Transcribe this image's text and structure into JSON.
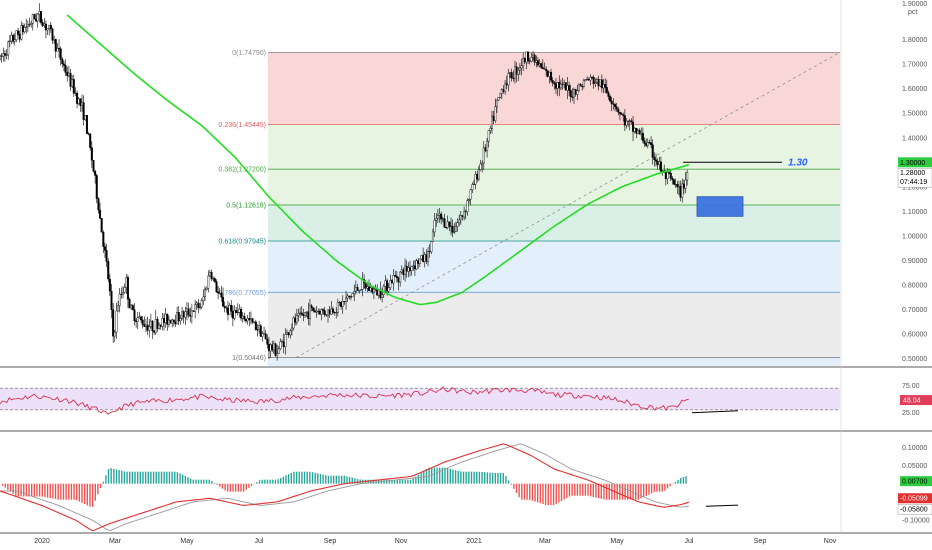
{
  "colors": {
    "up": "#ffffff",
    "down": "#000000",
    "wick": "#000000",
    "ma": "#22dd22",
    "rsi": "#d9324f",
    "macd": "#e03030",
    "signal": "#999999",
    "hist_pos": "#26a69a",
    "hist_neg": "#ef5350"
  },
  "price_axis": {
    "top_label": "1.90000",
    "unit": "pct",
    "ticks": [
      "1.80000",
      "1.70000",
      "1.60000",
      "1.50000",
      "1.40000",
      "1.20000",
      "1.10000",
      "1.00000",
      "0.90000",
      "0.80000",
      "0.70000",
      "0.60000",
      "0.50000"
    ]
  },
  "badges": {
    "current_price": "1.30000",
    "last_price": "1.28000",
    "countdown": "07:44:19",
    "rsi_value": "48.04",
    "macd_hist": "0.00700",
    "macd_line": "-0.05099",
    "signal_line": "-0.05800"
  },
  "rsi_axis": {
    "ticks": [
      "75.00",
      "25.00"
    ]
  },
  "macd_axis": {
    "ticks": [
      "0.10000",
      "0.05000",
      "-0.10000"
    ]
  },
  "time_axis": [
    "2020",
    "Mar",
    "May",
    "Jul",
    "Sep",
    "Nov",
    "2021",
    "Mar",
    "May",
    "Jul",
    "Sep",
    "Nov"
  ],
  "fib_levels": [
    {
      "label": "0(1.74790)",
      "value": 1.7479,
      "color": "#888888",
      "fill": "#f7c9c9"
    },
    {
      "label": "0.236(1.45445)",
      "value": 1.45445,
      "color": "#e06060",
      "fill": "#dff0d8"
    },
    {
      "label": "0.382(1.27200)",
      "value": 1.272,
      "color": "#44aa44",
      "fill": "#dff0d8"
    },
    {
      "label": "0.5(1.12618)",
      "value": 1.12618,
      "color": "#2a9d2a",
      "fill": "#cdebdf"
    },
    {
      "label": "0.618(0.97945)",
      "value": 0.97945,
      "color": "#1a8a8a",
      "fill": "#dbeafb"
    },
    {
      "label": "0.786(0.77055)",
      "value": 0.77055,
      "color": "#6aa0d8",
      "fill": "#e6e6e6"
    },
    {
      "label": "1(0.50446)",
      "value": 0.50446,
      "color": "#777777",
      "fill": "#d9e8f7"
    }
  ],
  "annotation": {
    "text": "1.30",
    "value": 1.3
  },
  "chart_data": {
    "type": "candlestick",
    "title": "",
    "x_range": [
      "2019-11",
      "2021-11"
    ],
    "y_range": [
      0.45,
      1.9
    ],
    "y_unit": "pct",
    "price_path": [
      [
        0.0,
        1.72
      ],
      [
        0.015,
        1.8
      ],
      [
        0.03,
        1.85
      ],
      [
        0.045,
        1.9
      ],
      [
        0.06,
        1.83
      ],
      [
        0.075,
        1.7
      ],
      [
        0.09,
        1.58
      ],
      [
        0.1,
        1.5
      ],
      [
        0.11,
        1.3
      ],
      [
        0.12,
        1.05
      ],
      [
        0.13,
        0.8
      ],
      [
        0.135,
        0.58
      ],
      [
        0.14,
        0.72
      ],
      [
        0.15,
        0.82
      ],
      [
        0.155,
        0.7
      ],
      [
        0.165,
        0.66
      ],
      [
        0.18,
        0.63
      ],
      [
        0.2,
        0.66
      ],
      [
        0.22,
        0.68
      ],
      [
        0.24,
        0.72
      ],
      [
        0.25,
        0.86
      ],
      [
        0.26,
        0.76
      ],
      [
        0.27,
        0.7
      ],
      [
        0.29,
        0.67
      ],
      [
        0.31,
        0.62
      ],
      [
        0.32,
        0.55
      ],
      [
        0.33,
        0.53
      ],
      [
        0.35,
        0.65
      ],
      [
        0.37,
        0.7
      ],
      [
        0.39,
        0.69
      ],
      [
        0.41,
        0.73
      ],
      [
        0.43,
        0.8
      ],
      [
        0.45,
        0.77
      ],
      [
        0.47,
        0.83
      ],
      [
        0.49,
        0.88
      ],
      [
        0.51,
        0.92
      ],
      [
        0.52,
        1.08
      ],
      [
        0.54,
        1.03
      ],
      [
        0.55,
        1.08
      ],
      [
        0.565,
        1.22
      ],
      [
        0.58,
        1.38
      ],
      [
        0.59,
        1.52
      ],
      [
        0.6,
        1.62
      ],
      [
        0.615,
        1.68
      ],
      [
        0.63,
        1.74
      ],
      [
        0.645,
        1.68
      ],
      [
        0.66,
        1.63
      ],
      [
        0.68,
        1.58
      ],
      [
        0.7,
        1.64
      ],
      [
        0.715,
        1.62
      ],
      [
        0.73,
        1.55
      ],
      [
        0.745,
        1.46
      ],
      [
        0.76,
        1.42
      ],
      [
        0.775,
        1.35
      ],
      [
        0.79,
        1.25
      ],
      [
        0.8,
        1.22
      ],
      [
        0.81,
        1.17
      ],
      [
        0.82,
        1.28
      ]
    ],
    "moving_average": [
      [
        0.08,
        1.9
      ],
      [
        0.12,
        1.78
      ],
      [
        0.16,
        1.66
      ],
      [
        0.2,
        1.55
      ],
      [
        0.24,
        1.45
      ],
      [
        0.28,
        1.32
      ],
      [
        0.32,
        1.16
      ],
      [
        0.36,
        1.02
      ],
      [
        0.4,
        0.9
      ],
      [
        0.44,
        0.8
      ],
      [
        0.47,
        0.75
      ],
      [
        0.5,
        0.72
      ],
      [
        0.52,
        0.73
      ],
      [
        0.55,
        0.77
      ],
      [
        0.58,
        0.84
      ],
      [
        0.62,
        0.94
      ],
      [
        0.66,
        1.04
      ],
      [
        0.7,
        1.13
      ],
      [
        0.74,
        1.2
      ],
      [
        0.78,
        1.25
      ],
      [
        0.8,
        1.27
      ],
      [
        0.82,
        1.29
      ]
    ],
    "rsi_path": [
      [
        0.0,
        46
      ],
      [
        0.04,
        56
      ],
      [
        0.08,
        48
      ],
      [
        0.1,
        38
      ],
      [
        0.12,
        28
      ],
      [
        0.13,
        18
      ],
      [
        0.14,
        32
      ],
      [
        0.16,
        42
      ],
      [
        0.2,
        48
      ],
      [
        0.24,
        54
      ],
      [
        0.27,
        48
      ],
      [
        0.31,
        45
      ],
      [
        0.35,
        52
      ],
      [
        0.4,
        58
      ],
      [
        0.45,
        55
      ],
      [
        0.5,
        60
      ],
      [
        0.53,
        68
      ],
      [
        0.56,
        62
      ],
      [
        0.6,
        67
      ],
      [
        0.63,
        66
      ],
      [
        0.66,
        58
      ],
      [
        0.7,
        56
      ],
      [
        0.73,
        50
      ],
      [
        0.76,
        38
      ],
      [
        0.78,
        34
      ],
      [
        0.8,
        33
      ],
      [
        0.81,
        42
      ],
      [
        0.82,
        48
      ]
    ],
    "macd_path": [
      [
        0.0,
        -0.02
      ],
      [
        0.05,
        -0.06
      ],
      [
        0.09,
        -0.1
      ],
      [
        0.11,
        -0.13
      ],
      [
        0.13,
        -0.11
      ],
      [
        0.17,
        -0.08
      ],
      [
        0.21,
        -0.05
      ],
      [
        0.25,
        -0.04
      ],
      [
        0.29,
        -0.06
      ],
      [
        0.33,
        -0.05
      ],
      [
        0.37,
        -0.02
      ],
      [
        0.41,
        0.0
      ],
      [
        0.45,
        0.01
      ],
      [
        0.49,
        0.02
      ],
      [
        0.53,
        0.06
      ],
      [
        0.57,
        0.09
      ],
      [
        0.6,
        0.11
      ],
      [
        0.63,
        0.08
      ],
      [
        0.66,
        0.04
      ],
      [
        0.7,
        0.01
      ],
      [
        0.73,
        -0.02
      ],
      [
        0.76,
        -0.05
      ],
      [
        0.79,
        -0.065
      ],
      [
        0.81,
        -0.058
      ],
      [
        0.82,
        -0.051
      ]
    ]
  }
}
